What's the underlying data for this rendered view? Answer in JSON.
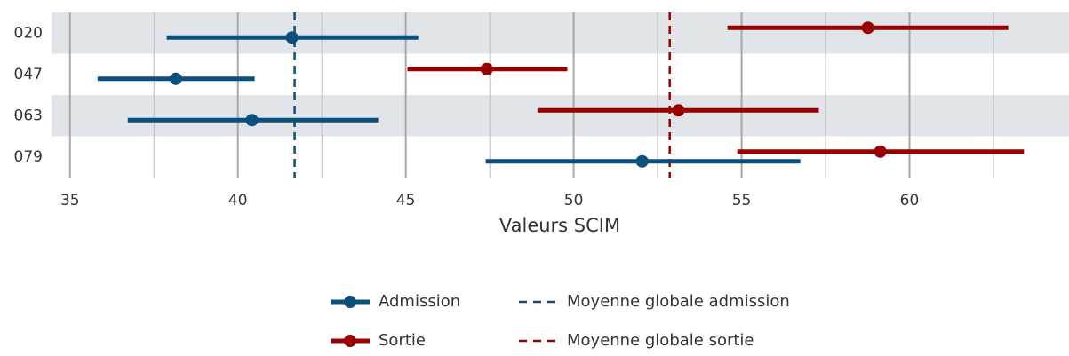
{
  "chart_data": {
    "type": "dot_interval",
    "x_label": "Valeurs SCIM",
    "categories": [
      "020",
      "047",
      "063",
      "079"
    ],
    "series": [
      {
        "name": "Admission",
        "color": "#0b4f7c",
        "values": [
          41.61,
          38.15,
          40.42,
          52.04
        ],
        "lower": [
          37.88,
          35.82,
          36.72,
          47.38
        ],
        "upper": [
          45.37,
          40.5,
          44.18,
          56.75
        ]
      },
      {
        "name": "Sortie",
        "color": "#990000",
        "values": [
          58.76,
          47.41,
          53.12,
          59.13
        ],
        "lower": [
          54.58,
          45.05,
          48.92,
          54.87
        ],
        "upper": [
          62.94,
          49.81,
          57.3,
          63.41
        ]
      }
    ],
    "reference_lines": [
      {
        "name": "Moyenne globale admission",
        "value": 41.69,
        "color": "#0b4f7c"
      },
      {
        "name": "Moyenne globale sortie",
        "value": 52.86,
        "color": "#990000"
      }
    ],
    "xlim": [
      34.45,
      64.75
    ],
    "xticks": [
      35,
      40,
      45,
      50,
      55,
      60
    ],
    "xminorticks": [
      37.5,
      42.5,
      47.5,
      52.5,
      57.5,
      62.5
    ],
    "grid": true,
    "legend": "bottom"
  }
}
